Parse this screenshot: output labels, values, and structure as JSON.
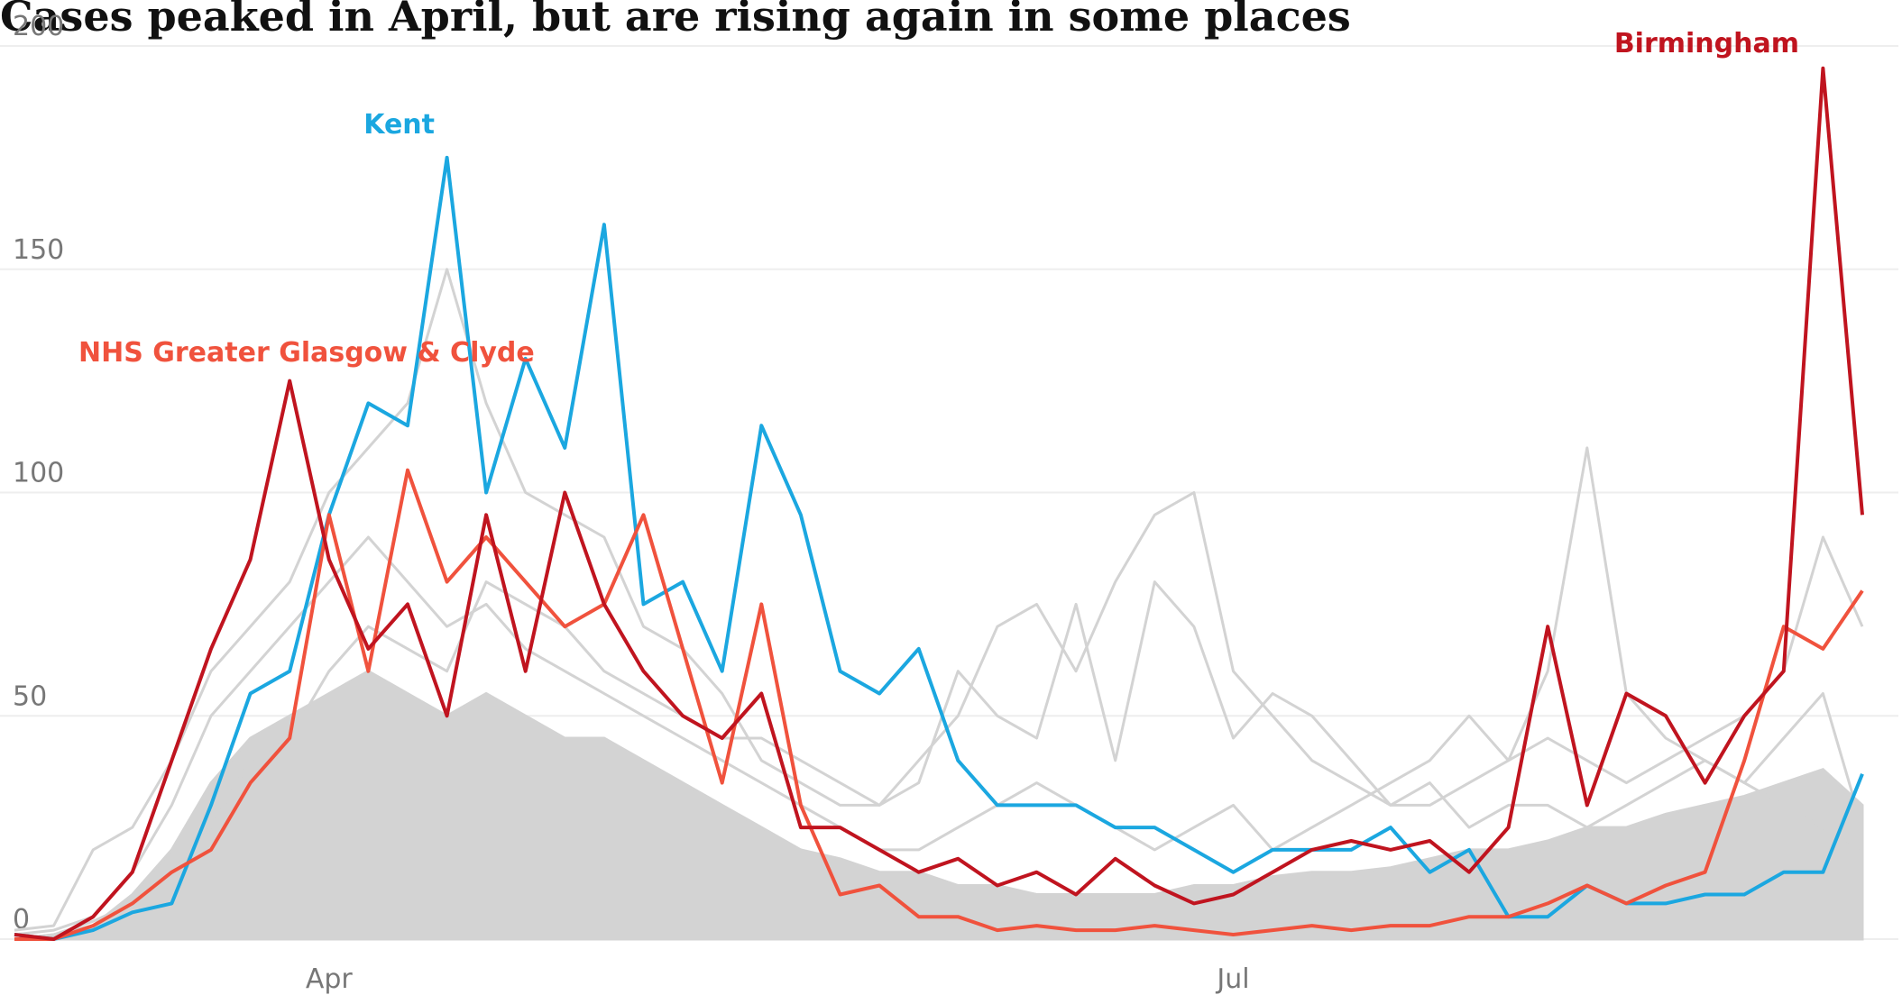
{
  "chart_data": {
    "type": "line",
    "title": "Cases peaked in April, but are rising again in some places",
    "categories": [
      null,
      null,
      null,
      null,
      null,
      null,
      null,
      null,
      "Apr",
      null,
      null,
      null,
      null,
      null,
      null,
      null,
      null,
      null,
      null,
      null,
      null,
      null,
      null,
      null,
      null,
      null,
      null,
      null,
      null,
      null,
      null,
      "Jul",
      null,
      null,
      null,
      null,
      null,
      null,
      null,
      null,
      null,
      null,
      null,
      null,
      null,
      null,
      null,
      null
    ],
    "ylim": [
      0,
      200
    ],
    "yticks": [
      0,
      50,
      100,
      150,
      200
    ],
    "grid": true,
    "series": [
      {
        "color": "#d3d3d3",
        "fill": true,
        "values": [
          0,
          1,
          3,
          10,
          20,
          35,
          45,
          50,
          55,
          60,
          55,
          50,
          55,
          50,
          45,
          45,
          40,
          35,
          30,
          25,
          20,
          18,
          15,
          15,
          12,
          12,
          10,
          10,
          10,
          10,
          12,
          12,
          14,
          15,
          15,
          16,
          18,
          20,
          20,
          22,
          25,
          25,
          28,
          30,
          32,
          35,
          38,
          30
        ]
      },
      {
        "color": "#d3d3d3",
        "values": [
          2,
          3,
          20,
          25,
          40,
          60,
          70,
          80,
          100,
          110,
          120,
          150,
          120,
          100,
          95,
          90,
          70,
          65,
          55,
          40,
          35,
          30,
          30,
          40,
          50,
          70,
          75,
          60,
          80,
          95,
          100,
          60,
          50,
          40,
          35,
          30,
          30,
          35,
          40,
          45,
          40,
          35,
          40,
          45,
          50,
          60,
          90,
          70
        ]
      },
      {
        "color": "#d3d3d3",
        "values": [
          1,
          2,
          5,
          15,
          30,
          50,
          60,
          70,
          80,
          90,
          80,
          70,
          75,
          65,
          60,
          55,
          50,
          45,
          40,
          35,
          30,
          25,
          20,
          20,
          25,
          30,
          35,
          30,
          25,
          20,
          25,
          30,
          20,
          25,
          30,
          35,
          40,
          50,
          40,
          60,
          110,
          55,
          45,
          40,
          35,
          30,
          25,
          20
        ]
      },
      {
        "color": "#d3d3d3",
        "values": [
          0,
          1,
          4,
          8,
          15,
          25,
          40,
          45,
          60,
          70,
          65,
          60,
          80,
          75,
          70,
          60,
          55,
          50,
          45,
          45,
          40,
          35,
          30,
          35,
          60,
          50,
          45,
          75,
          40,
          80,
          70,
          45,
          55,
          50,
          40,
          30,
          35,
          25,
          30,
          30,
          25,
          30,
          35,
          40,
          35,
          45,
          55,
          25
        ]
      },
      {
        "name": "Kent",
        "color": "#1ba7e0",
        "values": [
          1,
          0,
          2,
          6,
          8,
          30,
          55,
          60,
          95,
          120,
          115,
          175,
          100,
          130,
          110,
          160,
          75,
          80,
          60,
          115,
          95,
          60,
          55,
          65,
          40,
          30,
          30,
          30,
          25,
          25,
          20,
          15,
          20,
          20,
          20,
          25,
          15,
          20,
          5,
          5,
          12,
          8,
          8,
          10,
          10,
          15,
          15,
          37
        ]
      },
      {
        "name": "NHS Greater Glasgow & Clyde",
        "color": "#f0523d",
        "values": [
          0,
          0,
          3,
          8,
          15,
          20,
          35,
          45,
          95,
          60,
          105,
          80,
          90,
          80,
          70,
          75,
          95,
          65,
          35,
          75,
          30,
          10,
          12,
          5,
          5,
          2,
          3,
          2,
          2,
          3,
          2,
          1,
          2,
          3,
          2,
          3,
          3,
          5,
          5,
          8,
          12,
          8,
          12,
          15,
          40,
          70,
          65,
          78
        ]
      },
      {
        "name": "Birmingham",
        "color": "#c0141f",
        "values": [
          1,
          0,
          5,
          15,
          40,
          65,
          85,
          125,
          85,
          65,
          75,
          50,
          95,
          60,
          100,
          75,
          60,
          50,
          45,
          55,
          25,
          25,
          20,
          15,
          18,
          12,
          15,
          10,
          18,
          12,
          8,
          10,
          15,
          20,
          22,
          20,
          22,
          15,
          25,
          70,
          30,
          55,
          50,
          35,
          50,
          60,
          195,
          95
        ]
      }
    ]
  }
}
